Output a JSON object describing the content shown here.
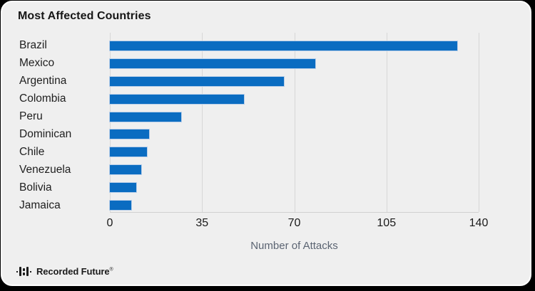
{
  "chart_data": {
    "type": "bar",
    "orientation": "horizontal",
    "title": "Most Affected Countries",
    "categories": [
      "Brazil",
      "Mexico",
      "Argentina",
      "Colombia",
      "Peru",
      "Dominican",
      "Chile",
      "Venezuela",
      "Bolivia",
      "Jamaica"
    ],
    "values": [
      132,
      78,
      66,
      51,
      27,
      15,
      14,
      12,
      10,
      8
    ],
    "xlabel": "Number of Attacks",
    "xticks": [
      0,
      35,
      70,
      105,
      140
    ],
    "xlim": [
      0,
      140
    ],
    "grid": true,
    "legend_position": "none",
    "bar_color": "#0a6cc1"
  },
  "footer": {
    "brand_name": "Recorded Future",
    "registered_mark": "®",
    "logo": "recorded-future-logo"
  },
  "colors": {
    "bar": "#0a6cc1",
    "bar_outline": "#b9cfe9",
    "card_background": "#efefef",
    "gridline": "#d7d7d7",
    "axis_title_text": "#5b6472",
    "tick_text": "#1a1a1a",
    "title_text": "#161616",
    "frame": "#000000"
  }
}
